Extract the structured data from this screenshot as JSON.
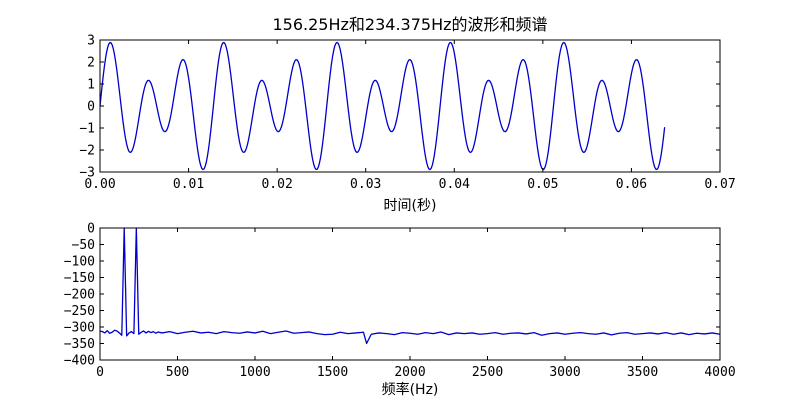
{
  "title": "156.25Hz和234.375Hz的波形和频谱",
  "colors": {
    "series": "#0000cc",
    "axes": "#000000",
    "background": "#ffffff"
  },
  "chart_data": [
    {
      "type": "line",
      "xlabel": "时间(秒)",
      "ylabel": "",
      "xlim": [
        0,
        0.07
      ],
      "ylim": [
        -3,
        3
      ],
      "xticks": [
        "0.00",
        "0.01",
        "0.02",
        "0.03",
        "0.04",
        "0.05",
        "0.06",
        "0.07"
      ],
      "yticks": [
        "3",
        "2",
        "1",
        "0",
        "−1",
        "−2",
        "−3"
      ],
      "grid": false,
      "series": [
        {
          "x_range": [
            0,
            0.06375
          ],
          "x_step": 0.000125,
          "components": [
            {
              "frequency_hz": 156.25,
              "amplitude": 1.0
            },
            {
              "frequency_hz": 234.375,
              "amplitude": 2.0
            }
          ]
        }
      ]
    },
    {
      "type": "line",
      "xlabel": "频率(Hz)",
      "ylabel": "",
      "xlim": [
        0,
        4000
      ],
      "ylim": [
        -400,
        0
      ],
      "xticks": [
        "0",
        "500",
        "1000",
        "1500",
        "2000",
        "2500",
        "3000",
        "3500",
        "4000"
      ],
      "yticks": [
        "0",
        "−50",
        "−100",
        "−150",
        "−200",
        "−250",
        "−300",
        "−350",
        "−400"
      ],
      "grid": false,
      "series": [
        {
          "x": [
            0,
            15.6,
            31.3,
            46.9,
            62.5,
            78.1,
            93.8,
            109.4,
            125,
            140.6,
            156.25,
            171.9,
            187.5,
            203.1,
            218.8,
            234.375,
            250,
            265.6,
            281.3,
            296.9,
            312.5,
            328.1,
            343.8,
            359.4,
            375,
            400,
            450,
            500,
            550,
            600,
            650,
            700,
            750,
            800,
            850,
            900,
            950,
            1000,
            1050,
            1100,
            1150,
            1200,
            1250,
            1300,
            1350,
            1400,
            1450,
            1500,
            1550,
            1600,
            1650,
            1700,
            1720,
            1750,
            1800,
            1850,
            1900,
            1950,
            2000,
            2050,
            2100,
            2150,
            2200,
            2250,
            2300,
            2350,
            2400,
            2450,
            2500,
            2550,
            2600,
            2650,
            2700,
            2750,
            2800,
            2850,
            2900,
            2950,
            3000,
            3050,
            3100,
            3150,
            3200,
            3250,
            3300,
            3350,
            3400,
            3450,
            3500,
            3550,
            3600,
            3650,
            3700,
            3750,
            3800,
            3850,
            3900,
            3950,
            4000
          ],
          "y": [
            -312,
            -314,
            -318,
            -311,
            -319,
            -316,
            -310,
            -312,
            -318,
            -325,
            0,
            -327,
            -318,
            -314,
            -320,
            0,
            -322,
            -316,
            -312,
            -318,
            -313,
            -317,
            -314,
            -319,
            -315,
            -318,
            -314,
            -320,
            -316,
            -313,
            -318,
            -316,
            -320,
            -314,
            -317,
            -319,
            -315,
            -318,
            -313,
            -320,
            -316,
            -312,
            -319,
            -317,
            -315,
            -320,
            -323,
            -322,
            -316,
            -320,
            -318,
            -316,
            -350,
            -322,
            -318,
            -320,
            -323,
            -317,
            -319,
            -322,
            -317,
            -320,
            -315,
            -323,
            -318,
            -320,
            -318,
            -322,
            -320,
            -317,
            -322,
            -319,
            -318,
            -321,
            -317,
            -325,
            -320,
            -318,
            -322,
            -319,
            -317,
            -320,
            -322,
            -318,
            -324,
            -319,
            -317,
            -322,
            -320,
            -318,
            -321,
            -317,
            -322,
            -318,
            -323,
            -319,
            -321,
            -318,
            -322
          ]
        }
      ]
    }
  ]
}
